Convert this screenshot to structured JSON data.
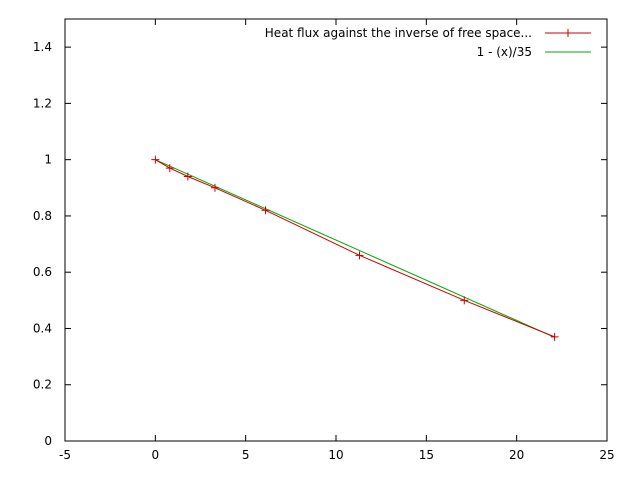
{
  "chart_data": {
    "type": "line",
    "xlim": [
      -5,
      25
    ],
    "ylim": [
      0,
      1.5
    ],
    "x_ticks": [
      "-5",
      "0",
      "5",
      "10",
      "15",
      "20",
      "25"
    ],
    "y_ticks": [
      "0",
      "0.2",
      "0.4",
      "0.6",
      "0.8",
      "1",
      "1.2",
      "1.4"
    ],
    "grid": false,
    "legend_position": "top-right",
    "series": [
      {
        "name": "Heat flux against the inverse of free space...",
        "color": "#cc0000",
        "marker": "plus",
        "points": [
          {
            "x": 0,
            "y": 1.0
          },
          {
            "x": 0.8,
            "y": 0.97
          },
          {
            "x": 1.8,
            "y": 0.94
          },
          {
            "x": 3.3,
            "y": 0.9
          },
          {
            "x": 6.1,
            "y": 0.82
          },
          {
            "x": 11.3,
            "y": 0.66
          },
          {
            "x": 17.1,
            "y": 0.5
          },
          {
            "x": 22.1,
            "y": 0.37
          }
        ]
      },
      {
        "name": "1 - (x)/35",
        "color": "#00aa00",
        "marker": "none",
        "points": [
          {
            "x": 0,
            "y": 1.0
          },
          {
            "x": 22.1,
            "y": 0.3686
          }
        ]
      }
    ]
  }
}
